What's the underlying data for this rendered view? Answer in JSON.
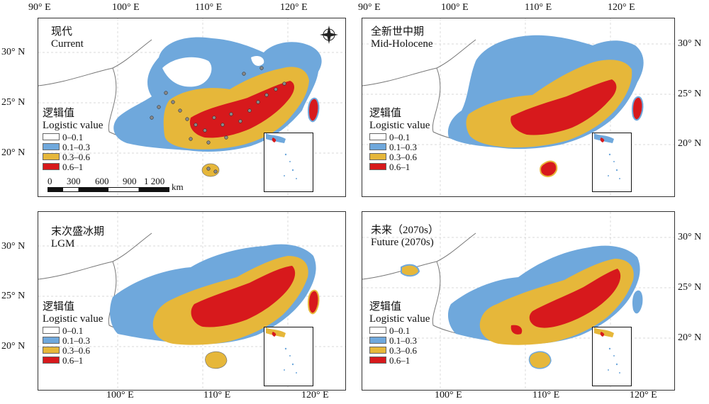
{
  "top_axis": {
    "lon": [
      "90° E",
      "100° E",
      "110° E",
      "120° E"
    ]
  },
  "bottom_axis": {
    "lon": [
      "100° E",
      "110° E",
      "120° E"
    ]
  },
  "left_axis": {
    "top_lat": [
      "30° N",
      "25° N",
      "20° N"
    ],
    "bottom_lat": [
      "30° N",
      "25° N",
      "20° N"
    ]
  },
  "right_axis": {
    "top_lat": [
      "30° N",
      "25° N",
      "20° N"
    ],
    "bottom_lat": [
      "30° N",
      "25° N",
      "20° N"
    ]
  },
  "legend": {
    "title_cn": "逻辑值",
    "title_en": "Logistic value",
    "classes": [
      {
        "label": "0–0.1",
        "color": "#ffffff"
      },
      {
        "label": "0.1–0.3",
        "color": "#6fa8dc"
      },
      {
        "label": "0.3–0.6",
        "color": "#e6b73a"
      },
      {
        "label": "0.6–1",
        "color": "#d7191c"
      }
    ]
  },
  "panels": [
    {
      "id": "current",
      "title_cn": "现代",
      "title_en": "Current"
    },
    {
      "id": "mid-holocene",
      "title_cn": "全新世中期",
      "title_en": "Mid-Holocene"
    },
    {
      "id": "lgm",
      "title_cn": "末次盛冰期",
      "title_en": "LGM"
    },
    {
      "id": "future",
      "title_cn": "未来（2070s）",
      "title_en": "Future (2070s)"
    }
  ],
  "scale_bar": {
    "ticks": [
      "0",
      "300",
      "600",
      "900",
      "1 200"
    ],
    "unit": "km"
  },
  "colors": {
    "ocean": "#ffffff",
    "boundary": "#777777",
    "point_fill": "#8a8a8a"
  }
}
